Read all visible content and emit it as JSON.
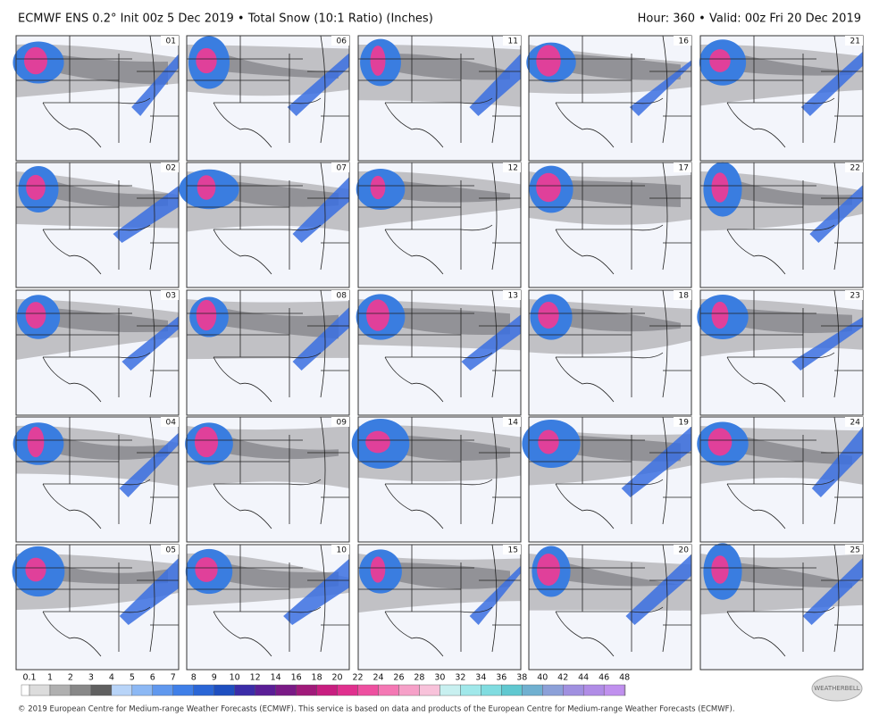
{
  "header": {
    "title": "ECMWF ENS 0.2° Init 00z 5 Dec 2019 • Total Snow (10:1 Ratio) (Inches)",
    "valid": "Hour: 360 • Valid: 00z Fri 20 Dec 2019"
  },
  "panels": [
    {
      "label": "01"
    },
    {
      "label": "02"
    },
    {
      "label": "03"
    },
    {
      "label": "04"
    },
    {
      "label": "05"
    },
    {
      "label": "06"
    },
    {
      "label": "07"
    },
    {
      "label": "08"
    },
    {
      "label": "09"
    },
    {
      "label": "10"
    },
    {
      "label": "11"
    },
    {
      "label": "12"
    },
    {
      "label": "13"
    },
    {
      "label": "14"
    },
    {
      "label": "15"
    },
    {
      "label": "16"
    },
    {
      "label": "17"
    },
    {
      "label": "18"
    },
    {
      "label": "19"
    },
    {
      "label": "20"
    },
    {
      "label": "21"
    },
    {
      "label": "22"
    },
    {
      "label": "23"
    },
    {
      "label": "24"
    },
    {
      "label": "25"
    }
  ],
  "colorbar": {
    "labels": [
      "0.1",
      "1",
      "2",
      "3",
      "4",
      "5",
      "6",
      "7",
      "8",
      "9",
      "10",
      "12",
      "14",
      "16",
      "18",
      "20",
      "22",
      "24",
      "26",
      "28",
      "30",
      "32",
      "34",
      "36",
      "38",
      "40",
      "42",
      "44",
      "46",
      "48"
    ]
  },
  "footer": {
    "copyright": "© 2019 European Centre for Medium-range Weather Forecasts (ECMWF). This service is based on data and products of the European Centre for Medium-range Weather Forecasts (ECMWF).",
    "logo": "WEATHERBELL"
  }
}
